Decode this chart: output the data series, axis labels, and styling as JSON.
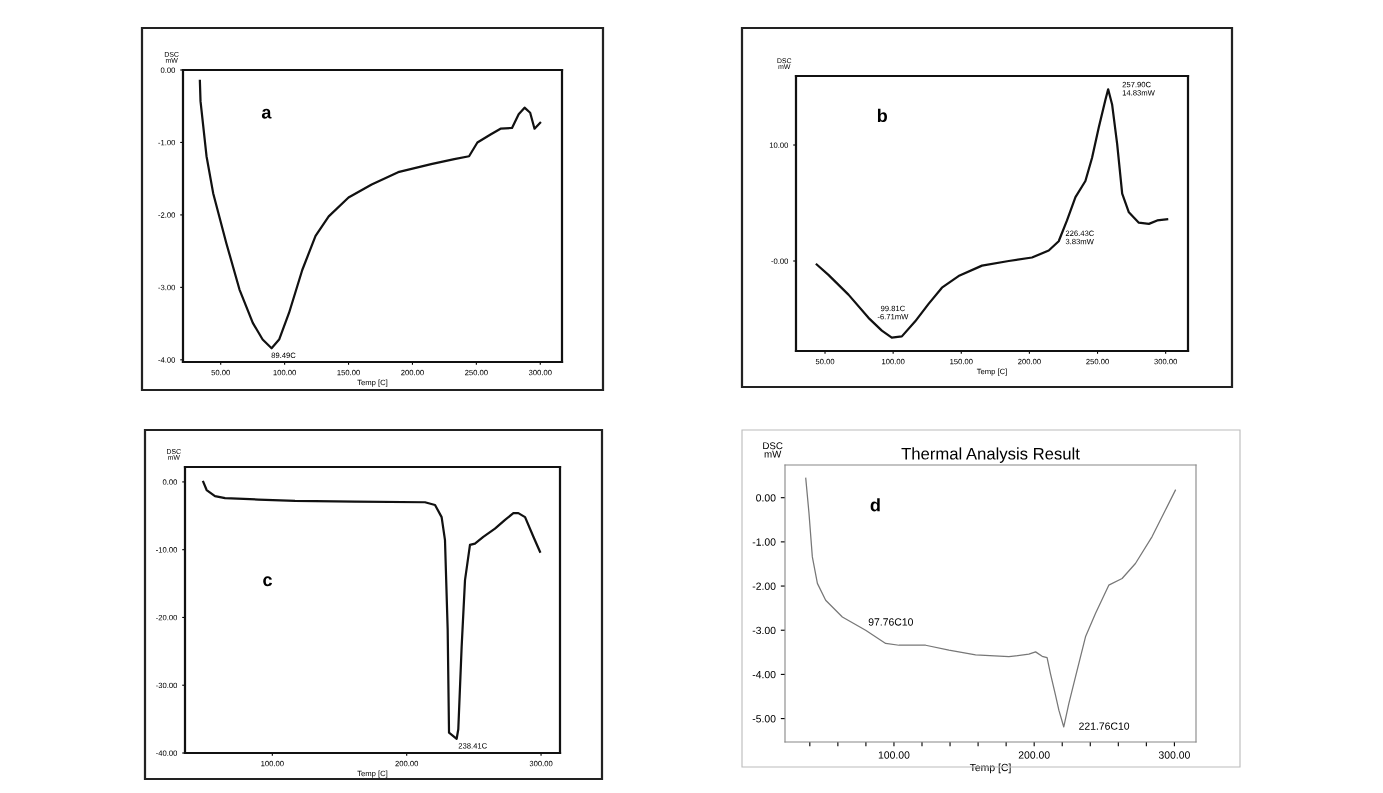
{
  "chart_data": [
    {
      "type": "line",
      "xlabel": "Temp [C]",
      "ylabel": "DSC\nmW",
      "xlim": [
        20.5,
        317
      ],
      "ylim": [
        -4.03,
        0.0
      ],
      "xticks": [
        {
          "value": 50,
          "label": "50.00"
        },
        {
          "value": 100,
          "label": "100.00"
        },
        {
          "value": 150,
          "label": "150.00"
        },
        {
          "value": 200,
          "label": "200.00"
        },
        {
          "value": 250,
          "label": "250.00"
        },
        {
          "value": 300,
          "label": "300.00"
        }
      ],
      "yticks": [
        {
          "value": 0,
          "label": "0.00"
        },
        {
          "value": -1,
          "label": "-1.00"
        },
        {
          "value": -2,
          "label": "-2.00"
        },
        {
          "value": -3,
          "label": "-3.00"
        },
        {
          "value": -4,
          "label": "-4.00"
        }
      ],
      "x": [
        33.7,
        34.2,
        38.9,
        44.1,
        54.4,
        64.7,
        75.1,
        82.8,
        89.8,
        95.7,
        103.5,
        113.8,
        124.2,
        134.5,
        150.0,
        168.1,
        188.8,
        214.6,
        232.7,
        244.3,
        250.8,
        261.1,
        268.9,
        277.9,
        283.1,
        287.7,
        292.1,
        295.5,
        299.9
      ],
      "series": [
        {
          "color": "#111111",
          "values": [
            -0.15,
            -0.43,
            -1.19,
            -1.7,
            -2.39,
            -3.03,
            -3.49,
            -3.72,
            -3.84,
            -3.72,
            -3.35,
            -2.76,
            -2.29,
            -2.02,
            -1.76,
            -1.58,
            -1.41,
            -1.3,
            -1.23,
            -1.19,
            -1.0,
            -0.89,
            -0.81,
            -0.8,
            -0.61,
            -0.52,
            -0.59,
            -0.81,
            -0.73
          ]
        }
      ],
      "annotations": [
        "a",
        {
          "text": "89.49C",
          "x": 89.49,
          "y": -3.84
        }
      ],
      "grid": false
    },
    {
      "type": "line",
      "xlabel": "Temp [C]",
      "ylabel": "DSC\nmW",
      "xlim": [
        28.7,
        316.4
      ],
      "ylim": [
        -7.76,
        15.95
      ],
      "xticks": [
        {
          "value": 50,
          "label": "50.00"
        },
        {
          "value": 100,
          "label": "100.00"
        },
        {
          "value": 150,
          "label": "150.00"
        },
        {
          "value": 200,
          "label": "200.00"
        },
        {
          "value": 250,
          "label": "250.00"
        },
        {
          "value": 300,
          "label": "300.00"
        }
      ],
      "yticks": [
        {
          "value": 0,
          "label": "-0.00"
        },
        {
          "value": 10,
          "label": "10.00"
        }
      ],
      "x": [
        43.9,
        52.5,
        67.2,
        81.9,
        91.7,
        99.0,
        106.4,
        116.2,
        126.0,
        135.8,
        148.0,
        165.2,
        184.8,
        201.9,
        214.2,
        221.5,
        227.6,
        233.8,
        241.1,
        246.0,
        250.9,
        255.8,
        257.8,
        260.7,
        264.4,
        268.1,
        273.0,
        280.3,
        287.7,
        293.8,
        301.1
      ],
      "series": [
        {
          "color": "#111111",
          "values": [
            -0.3,
            -1.2,
            -2.9,
            -4.9,
            -6.0,
            -6.6,
            -6.5,
            -5.2,
            -3.7,
            -2.3,
            -1.3,
            -0.4,
            0.0,
            0.3,
            0.9,
            1.7,
            3.5,
            5.5,
            6.9,
            8.9,
            11.5,
            13.9,
            14.8,
            13.5,
            10.1,
            5.8,
            4.2,
            3.3,
            3.2,
            3.5,
            3.6
          ]
        }
      ],
      "annotations": [
        "b",
        {
          "text": "99.81C\n-6.71mW",
          "x": 99.81,
          "y": -6.6
        },
        {
          "text": "226.43C\n3.83mW",
          "x": 226.43,
          "y": 3.0
        },
        {
          "text": "257.90C\n14.83mW",
          "x": 257.9,
          "y": 14.8
        }
      ],
      "grid": false
    },
    {
      "type": "line",
      "xlabel": "Temp [C]",
      "ylabel": "DSC\nmW",
      "xlim": [
        35.0,
        314.1
      ],
      "ylim": [
        -40.0,
        2.2
      ],
      "xticks": [
        {
          "value": 100,
          "label": "100.00"
        },
        {
          "value": 200,
          "label": "200.00"
        },
        {
          "value": 300,
          "label": "300.00"
        }
      ],
      "yticks": [
        {
          "value": 0,
          "label": "0.00"
        },
        {
          "value": -10,
          "label": "-10.00"
        },
        {
          "value": -20,
          "label": "-20.00"
        },
        {
          "value": -30,
          "label": "-30.00"
        },
        {
          "value": -40,
          "label": "-40.00"
        }
      ],
      "x": [
        48.6,
        51.1,
        57.3,
        64.8,
        89.6,
        116.9,
        161.5,
        213.6,
        221.1,
        226.0,
        228.5,
        230.5,
        231.5,
        237.2,
        238.4,
        240.9,
        243.4,
        247.1,
        250.8,
        257.0,
        265.7,
        273.2,
        279.4,
        283.1,
        288.1,
        294.3,
        299.2
      ],
      "series": [
        {
          "color": "#111111",
          "values": [
            0.0,
            -1.2,
            -2.1,
            -2.4,
            -2.6,
            -2.8,
            -2.9,
            -3.0,
            -3.4,
            -5.2,
            -8.6,
            -21.8,
            -37.0,
            -37.9,
            -36.5,
            -24.3,
            -14.5,
            -9.3,
            -9.1,
            -8.1,
            -6.9,
            -5.6,
            -4.6,
            -4.6,
            -5.2,
            -8.1,
            -10.3
          ]
        }
      ],
      "annotations": [
        "c",
        {
          "text": "238.41C",
          "x": 238.41,
          "y": -37.9
        }
      ],
      "grid": false
    },
    {
      "type": "line",
      "title": "Thermal Analysis Result",
      "xlabel": "Temp [C]",
      "ylabel": "DSC\nmW",
      "xlim": [
        22.3,
        315.4
      ],
      "ylim": [
        -5.53,
        0.74
      ],
      "xticks": [
        {
          "value": 40,
          "label": null
        },
        {
          "value": 60,
          "label": null
        },
        {
          "value": 80,
          "label": null
        },
        {
          "value": 100,
          "label": "100.00"
        },
        {
          "value": 120,
          "label": null
        },
        {
          "value": 140,
          "label": null
        },
        {
          "value": 160,
          "label": null
        },
        {
          "value": 180,
          "label": null
        },
        {
          "value": 200,
          "label": "200.00"
        },
        {
          "value": 220,
          "label": null
        },
        {
          "value": 240,
          "label": null
        },
        {
          "value": 260,
          "label": null
        },
        {
          "value": 280,
          "label": null
        },
        {
          "value": 300,
          "label": "300.00"
        }
      ],
      "yticks": [
        {
          "value": 0,
          "label": "0.00"
        },
        {
          "value": -1,
          "label": "-1.00"
        },
        {
          "value": -2,
          "label": "-2.00"
        },
        {
          "value": -3,
          "label": "-3.00"
        },
        {
          "value": -4,
          "label": "-4.00"
        },
        {
          "value": -5,
          "label": "-5.00"
        }
      ],
      "x": [
        37.1,
        39.4,
        41.8,
        45.4,
        51.3,
        63.2,
        79.8,
        94.1,
        103.6,
        122.6,
        139.2,
        158.2,
        182.0,
        196.2,
        201.0,
        205.7,
        209.2,
        211.6,
        215.2,
        217.6,
        221.1,
        224.7,
        229.4,
        236.6,
        243.7,
        253.2,
        262.7,
        272.2,
        284.1,
        293.6,
        300.7
      ],
      "series": [
        {
          "color": "#777777",
          "values": [
            0.44,
            -0.35,
            -1.34,
            -1.94,
            -2.32,
            -2.7,
            -3.0,
            -3.3,
            -3.34,
            -3.34,
            -3.45,
            -3.56,
            -3.6,
            -3.54,
            -3.49,
            -3.59,
            -3.62,
            -3.98,
            -4.47,
            -4.81,
            -5.19,
            -4.66,
            -4.06,
            -3.15,
            -2.62,
            -1.98,
            -1.83,
            -1.49,
            -0.88,
            -0.28,
            0.17
          ]
        }
      ],
      "annotations": [
        "d",
        {
          "text": "97.76C10",
          "x": 97.76,
          "y": -3.32
        },
        {
          "text": "221.76C10",
          "x": 221.76,
          "y": -5.19
        }
      ],
      "grid": false
    }
  ]
}
